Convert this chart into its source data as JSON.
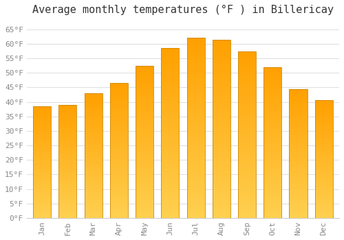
{
  "title": "Average monthly temperatures (°F ) in Billericay",
  "months": [
    "Jan",
    "Feb",
    "Mar",
    "Apr",
    "May",
    "Jun",
    "Jul",
    "Aug",
    "Sep",
    "Oct",
    "Nov",
    "Dec"
  ],
  "values": [
    38.5,
    39.0,
    43.0,
    46.5,
    52.5,
    58.5,
    62.0,
    61.5,
    57.5,
    52.0,
    44.5,
    40.5
  ],
  "bar_color_top": "#FFA000",
  "bar_color_bottom": "#FFD060",
  "bar_edge_color": "#CC8800",
  "ylim": [
    0,
    68
  ],
  "yticks": [
    0,
    5,
    10,
    15,
    20,
    25,
    30,
    35,
    40,
    45,
    50,
    55,
    60,
    65
  ],
  "background_color": "#ffffff",
  "grid_color": "#e0e0e0",
  "title_fontsize": 11,
  "tick_fontsize": 8,
  "font_family": "monospace"
}
